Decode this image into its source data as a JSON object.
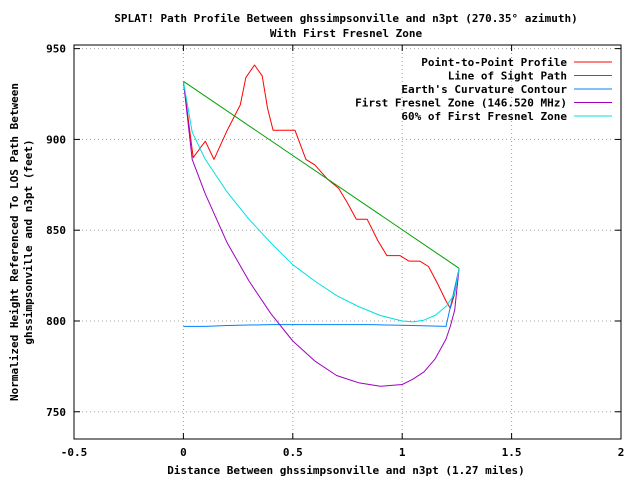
{
  "chart_data": {
    "type": "line",
    "title": "SPLAT! Path Profile Between ghssimpsonville and n3pt (270.35° azimuth)",
    "subtitle": "With First Fresnel Zone",
    "xlabel": "Distance Between ghssimpsonville and n3pt (1.27 miles)",
    "ylabel_lines": [
      "Normalized Height Referenced To LOS Path Between",
      "ghssimpsonville and n3pt (feet)"
    ],
    "xlim": [
      -0.5,
      2
    ],
    "ylim": [
      735,
      952
    ],
    "x_ticks": [
      -0.5,
      0,
      0.5,
      1,
      1.5,
      2
    ],
    "x_tick_labels": [
      "-0.5",
      "0",
      "0.5",
      "1",
      "1.5",
      "2"
    ],
    "y_ticks": [
      750,
      800,
      850,
      900,
      950
    ],
    "y_tick_labels": [
      "750",
      "800",
      "850",
      "900",
      "950"
    ],
    "grid": true,
    "legend_position": "top-right",
    "series": [
      {
        "name": "Point-to-Point Profile",
        "color": "#ff0000",
        "points": [
          [
            0,
            932
          ],
          [
            0.045,
            890
          ],
          [
            0.1,
            899
          ],
          [
            0.14,
            889
          ],
          [
            0.2,
            905
          ],
          [
            0.26,
            919
          ],
          [
            0.285,
            934
          ],
          [
            0.325,
            941
          ],
          [
            0.36,
            935
          ],
          [
            0.385,
            917
          ],
          [
            0.41,
            905
          ],
          [
            0.51,
            905
          ],
          [
            0.56,
            889
          ],
          [
            0.6,
            886
          ],
          [
            0.66,
            878
          ],
          [
            0.71,
            873
          ],
          [
            0.75,
            865
          ],
          [
            0.79,
            856
          ],
          [
            0.84,
            856
          ],
          [
            0.89,
            844
          ],
          [
            0.93,
            836
          ],
          [
            0.99,
            836
          ],
          [
            1.03,
            833
          ],
          [
            1.08,
            833
          ],
          [
            1.12,
            830
          ],
          [
            1.16,
            821
          ],
          [
            1.2,
            811
          ],
          [
            1.22,
            807
          ],
          [
            1.24,
            815
          ],
          [
            1.26,
            829
          ]
        ]
      },
      {
        "name": "Line of Sight Path",
        "color": "#00a000",
        "points": [
          [
            0,
            932
          ],
          [
            1.26,
            829
          ]
        ]
      },
      {
        "name": "Earth's Curvature Contour",
        "color": "#0080ff",
        "points": [
          [
            0,
            797
          ],
          [
            0.1,
            797
          ],
          [
            0.2,
            797.5
          ],
          [
            0.4,
            798
          ],
          [
            0.63,
            798
          ],
          [
            0.85,
            798
          ],
          [
            1.05,
            797.5
          ],
          [
            1.2,
            797
          ],
          [
            1.26,
            829
          ]
        ]
      },
      {
        "name": "First Fresnel Zone (146.520 MHz)",
        "color": "#a000c0",
        "points": [
          [
            0,
            932
          ],
          [
            0.04,
            889
          ],
          [
            0.1,
            870
          ],
          [
            0.2,
            843
          ],
          [
            0.3,
            822
          ],
          [
            0.4,
            804
          ],
          [
            0.5,
            789
          ],
          [
            0.6,
            778
          ],
          [
            0.7,
            770
          ],
          [
            0.8,
            766
          ],
          [
            0.9,
            764
          ],
          [
            1.0,
            765
          ],
          [
            1.05,
            768
          ],
          [
            1.1,
            772
          ],
          [
            1.15,
            779
          ],
          [
            1.2,
            790
          ],
          [
            1.22,
            797
          ],
          [
            1.24,
            806
          ],
          [
            1.26,
            829
          ]
        ]
      },
      {
        "name": "60% of First Fresnel Zone",
        "color": "#00e0e0",
        "points": [
          [
            0,
            932
          ],
          [
            0.04,
            904
          ],
          [
            0.1,
            889
          ],
          [
            0.2,
            871
          ],
          [
            0.3,
            856
          ],
          [
            0.4,
            843
          ],
          [
            0.5,
            831
          ],
          [
            0.6,
            822
          ],
          [
            0.7,
            814
          ],
          [
            0.8,
            808
          ],
          [
            0.9,
            803
          ],
          [
            1.0,
            800
          ],
          [
            1.05,
            799.5
          ],
          [
            1.1,
            800.5
          ],
          [
            1.15,
            803
          ],
          [
            1.2,
            808
          ],
          [
            1.24,
            815
          ],
          [
            1.26,
            829
          ]
        ]
      }
    ]
  }
}
